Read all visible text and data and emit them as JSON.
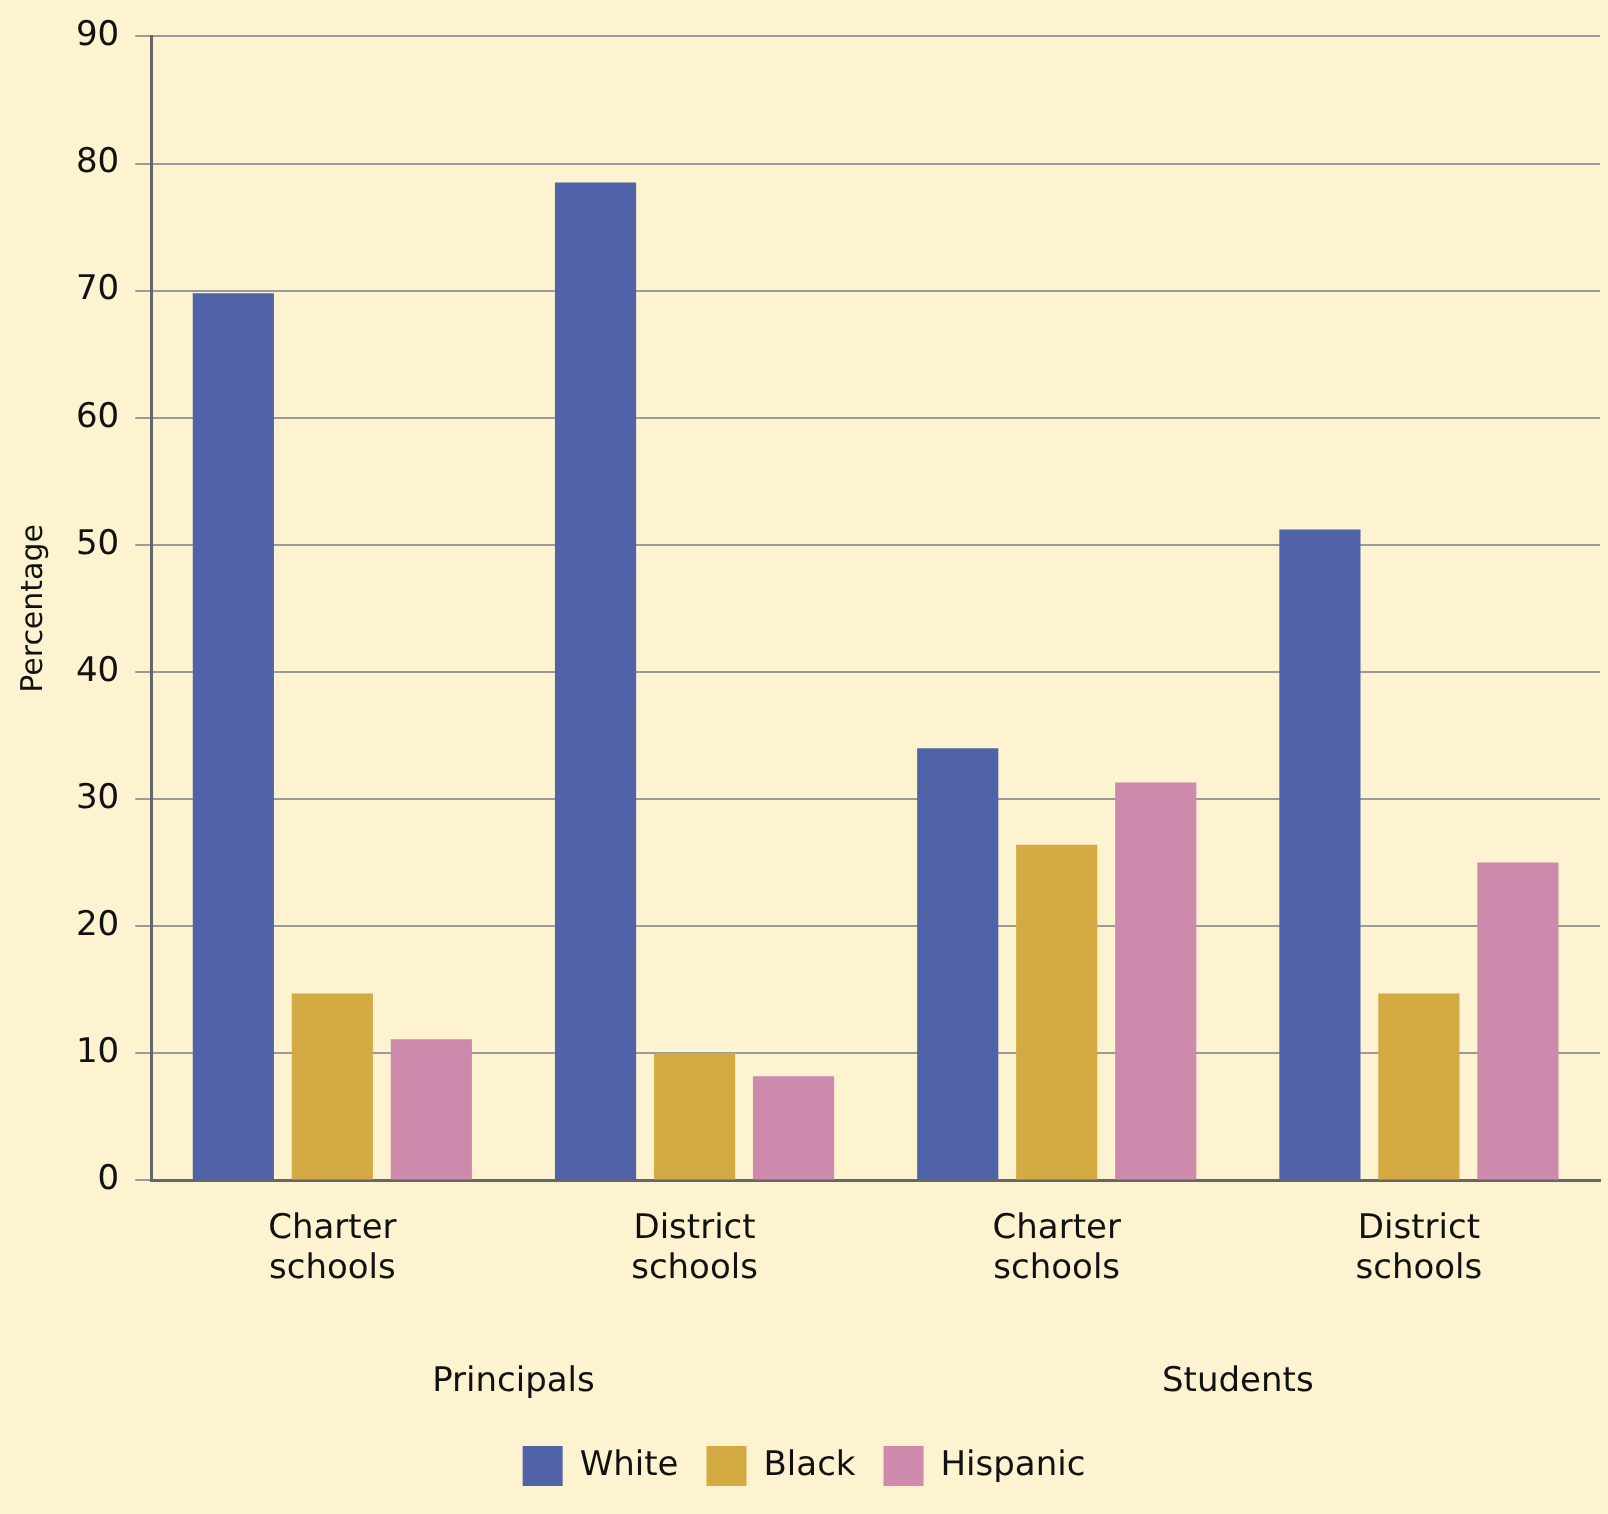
{
  "chart_data": {
    "type": "bar",
    "ylabel": "Percentage",
    "categories": [
      "Charter schools",
      "District schools",
      "Charter schools",
      "District schools"
    ],
    "series": [
      {
        "name": "White",
        "color": "#5163a8",
        "values": [
          69.8,
          78.5,
          34.0,
          51.2
        ]
      },
      {
        "name": "Black",
        "color": "#d4aa42",
        "values": [
          14.7,
          10.0,
          26.4,
          14.7
        ]
      },
      {
        "name": "Hispanic",
        "color": "#cd8aac",
        "values": [
          11.1,
          8.2,
          31.3,
          25.0
        ]
      }
    ],
    "ylim": [
      0,
      90
    ],
    "yticks": [
      0,
      10,
      20,
      30,
      40,
      50,
      60,
      70,
      80,
      90
    ],
    "grid": "y",
    "legend": "bottom",
    "annotations": [
      "Principals",
      "Students"
    ]
  }
}
